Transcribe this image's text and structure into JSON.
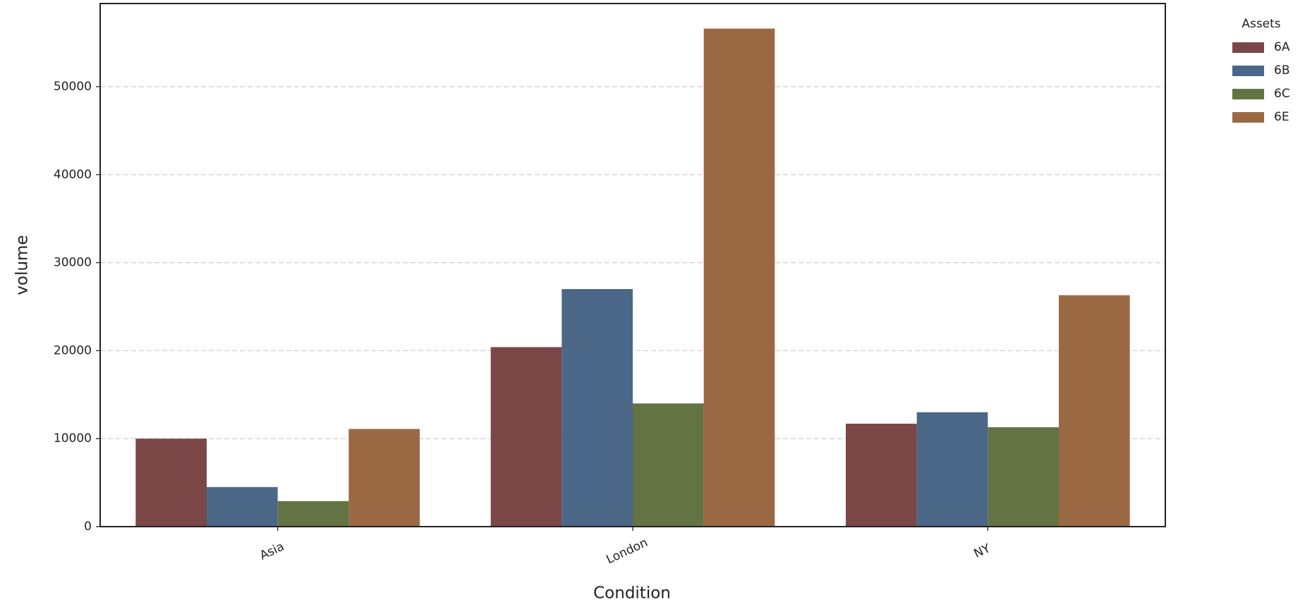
{
  "chart_data": {
    "type": "bar",
    "x_label": "Condition",
    "y_label": "volume",
    "legend_title": "Assets",
    "categories": [
      "Asia",
      "London",
      "NY"
    ],
    "series": [
      {
        "name": "6A",
        "color": "#7b4646",
        "values": [
          10000,
          20400,
          11700
        ]
      },
      {
        "name": "6B",
        "color": "#4a6788",
        "values": [
          4500,
          27000,
          13000
        ]
      },
      {
        "name": "6C",
        "color": "#637344",
        "values": [
          2900,
          14000,
          11300
        ]
      },
      {
        "name": "6E",
        "color": "#9a6944",
        "values": [
          11100,
          56600,
          26300
        ]
      }
    ],
    "ylim": [
      0,
      59450
    ],
    "yticks": [
      0,
      10000,
      20000,
      30000,
      40000,
      50000
    ],
    "grid": true,
    "legend": "outside-right"
  }
}
